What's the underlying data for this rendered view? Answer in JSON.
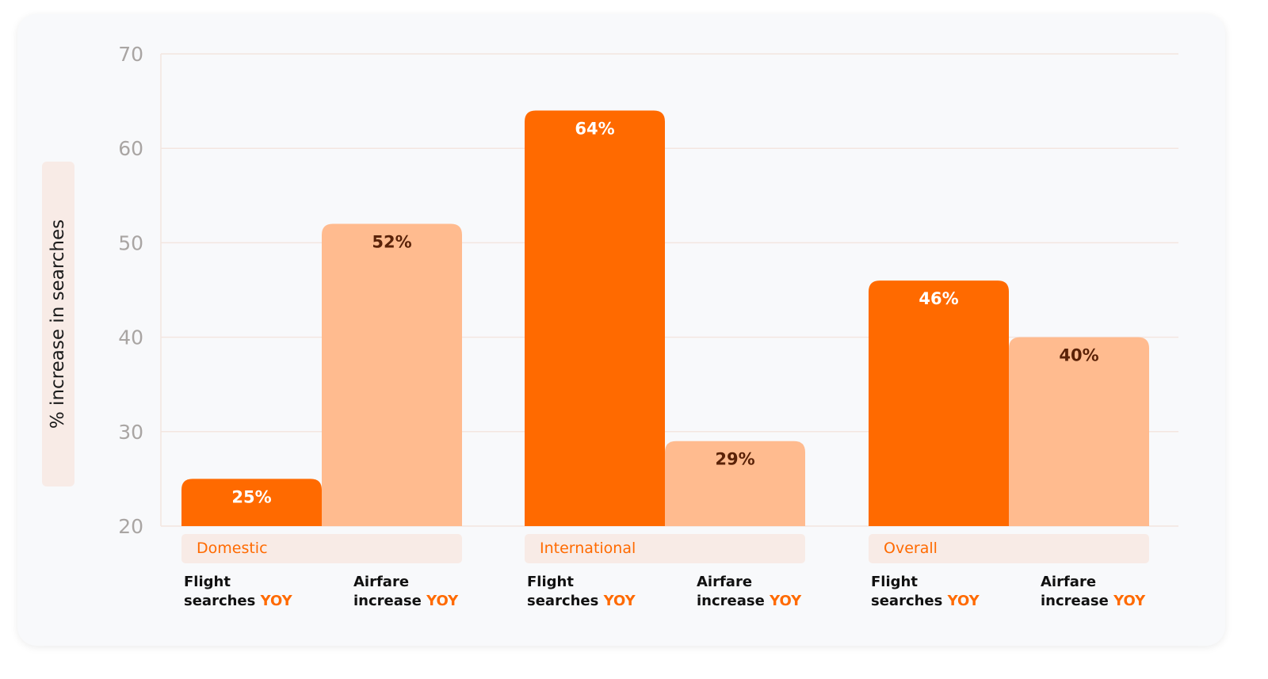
{
  "chart_data": {
    "type": "bar",
    "ylabel": "% increase in searches",
    "ylim": [
      20,
      70
    ],
    "yticks": [
      20,
      30,
      40,
      50,
      60,
      70
    ],
    "grid": true,
    "categories": [
      "Domestic",
      "International",
      "Overall"
    ],
    "series": [
      {
        "name_line1": "Flight",
        "name_line2": "searches",
        "name_suffix": "YOY",
        "values": [
          25,
          64,
          46
        ],
        "labels": [
          "25%",
          "64%",
          "46%"
        ],
        "color": "#ff6a00",
        "label_color": "#ffffff"
      },
      {
        "name_line1": "Airfare",
        "name_line2": "increase",
        "name_suffix": "YOY",
        "values": [
          52,
          29,
          40
        ],
        "labels": [
          "52%",
          "29%",
          "40%"
        ],
        "color": "#ffbb8f",
        "label_color": "#5a2208"
      }
    ]
  },
  "colors": {
    "accent": "#ff6a00",
    "light": "#ffbb8f",
    "band": "#f8ebe6"
  }
}
